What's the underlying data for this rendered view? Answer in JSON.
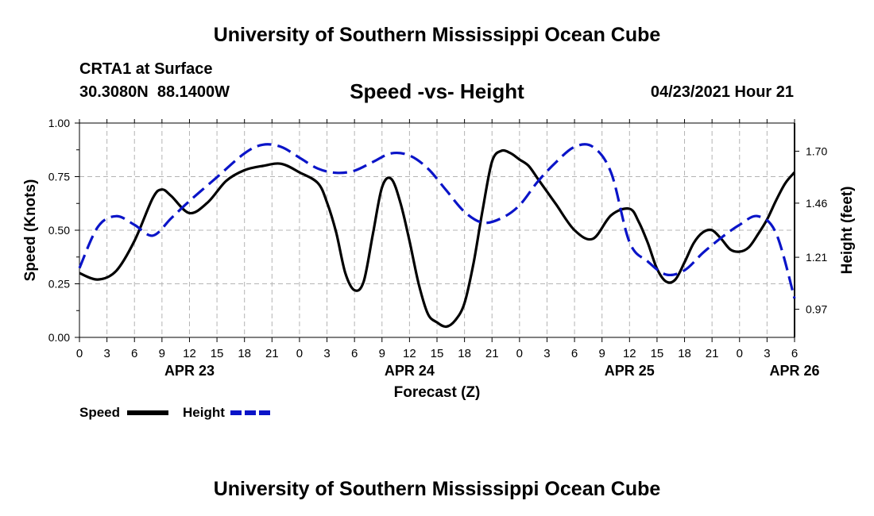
{
  "page": {
    "title_top": "University of Southern Mississippi Ocean Cube",
    "title_bottom": "University of Southern Mississippi Ocean Cube",
    "station": "CRTA1 at Surface",
    "coords": "30.3080N  88.1400W",
    "subtitle": "Speed -vs- Height",
    "datetime": "04/23/2021 Hour 21"
  },
  "legend": {
    "speed_label": "Speed",
    "height_label": "Height"
  },
  "colors": {
    "speed": "#000000",
    "height": "#0a14c8",
    "grid": "#b4b4b4"
  },
  "chart_data": {
    "type": "line",
    "title": "Speed -vs- Height",
    "xlabel": "Forecast (Z)",
    "ylabel": "Speed (Knots)",
    "y2label": "Height (feet)",
    "x_range_hours": [
      0,
      78
    ],
    "ylim": [
      0,
      1
    ],
    "y2lim": [
      0.84,
      1.83
    ],
    "y_ticks": [
      0.0,
      0.25,
      0.5,
      0.75,
      1.0
    ],
    "y_tick_labels": [
      "0.00",
      "0.25",
      "0.50",
      "0.75",
      "1.00"
    ],
    "y2_ticks": [
      0.97,
      1.21,
      1.46,
      1.7
    ],
    "y2_tick_labels": [
      "0.97",
      "1.21",
      "1.46",
      "1.70"
    ],
    "x_tick_labels": [
      "0",
      "3",
      "6",
      "9",
      "12",
      "15",
      "18",
      "21",
      "0",
      "3",
      "6",
      "9",
      "12",
      "15",
      "18",
      "21",
      "0",
      "3",
      "6",
      "9",
      "12",
      "15",
      "18",
      "21",
      "0",
      "3",
      "6"
    ],
    "date_labels": [
      {
        "label": "APR 23",
        "hour": 12
      },
      {
        "label": "APR 24",
        "hour": 36
      },
      {
        "label": "APR 25",
        "hour": 60
      },
      {
        "label": "APR 26",
        "hour": 78
      }
    ],
    "series": [
      {
        "name": "Speed",
        "axis": "left",
        "style": "solid",
        "x": [
          0,
          2,
          4,
          6,
          8,
          9,
          10,
          12,
          14,
          16,
          18,
          20,
          22,
          24,
          26,
          27,
          28,
          29,
          30,
          31,
          32,
          33,
          34,
          35,
          36,
          37,
          38,
          39,
          40,
          41,
          42,
          43,
          44,
          45,
          46,
          47,
          48,
          49,
          50,
          51,
          52,
          54,
          56,
          58,
          60,
          61,
          62,
          63,
          64,
          65,
          66,
          67,
          68,
          69,
          70,
          71,
          72,
          73,
          74,
          75,
          76,
          77,
          78
        ],
        "values": [
          0.3,
          0.27,
          0.31,
          0.45,
          0.65,
          0.69,
          0.66,
          0.58,
          0.63,
          0.73,
          0.78,
          0.8,
          0.81,
          0.77,
          0.72,
          0.63,
          0.49,
          0.3,
          0.22,
          0.26,
          0.48,
          0.7,
          0.74,
          0.63,
          0.45,
          0.25,
          0.11,
          0.07,
          0.05,
          0.08,
          0.16,
          0.35,
          0.6,
          0.82,
          0.87,
          0.86,
          0.83,
          0.8,
          0.74,
          0.68,
          0.62,
          0.5,
          0.46,
          0.57,
          0.6,
          0.54,
          0.44,
          0.32,
          0.26,
          0.27,
          0.35,
          0.44,
          0.49,
          0.5,
          0.46,
          0.41,
          0.4,
          0.42,
          0.48,
          0.55,
          0.64,
          0.72,
          0.77
        ]
      },
      {
        "name": "Height",
        "axis": "right",
        "style": "dashed",
        "x": [
          0,
          2,
          4,
          6,
          8,
          10,
          12,
          15,
          18,
          20,
          22,
          24,
          26,
          28,
          30,
          32,
          34,
          36,
          38,
          40,
          42,
          44,
          46,
          48,
          50,
          52,
          54,
          56,
          58,
          60,
          62,
          64,
          66,
          68,
          70,
          72,
          74,
          76,
          78
        ],
        "values": [
          1.16,
          1.35,
          1.4,
          1.36,
          1.31,
          1.39,
          1.47,
          1.58,
          1.69,
          1.73,
          1.72,
          1.67,
          1.62,
          1.6,
          1.61,
          1.65,
          1.69,
          1.68,
          1.62,
          1.52,
          1.42,
          1.37,
          1.39,
          1.45,
          1.56,
          1.65,
          1.72,
          1.72,
          1.6,
          1.28,
          1.19,
          1.13,
          1.15,
          1.23,
          1.3,
          1.36,
          1.4,
          1.32,
          1.02
        ]
      }
    ]
  }
}
